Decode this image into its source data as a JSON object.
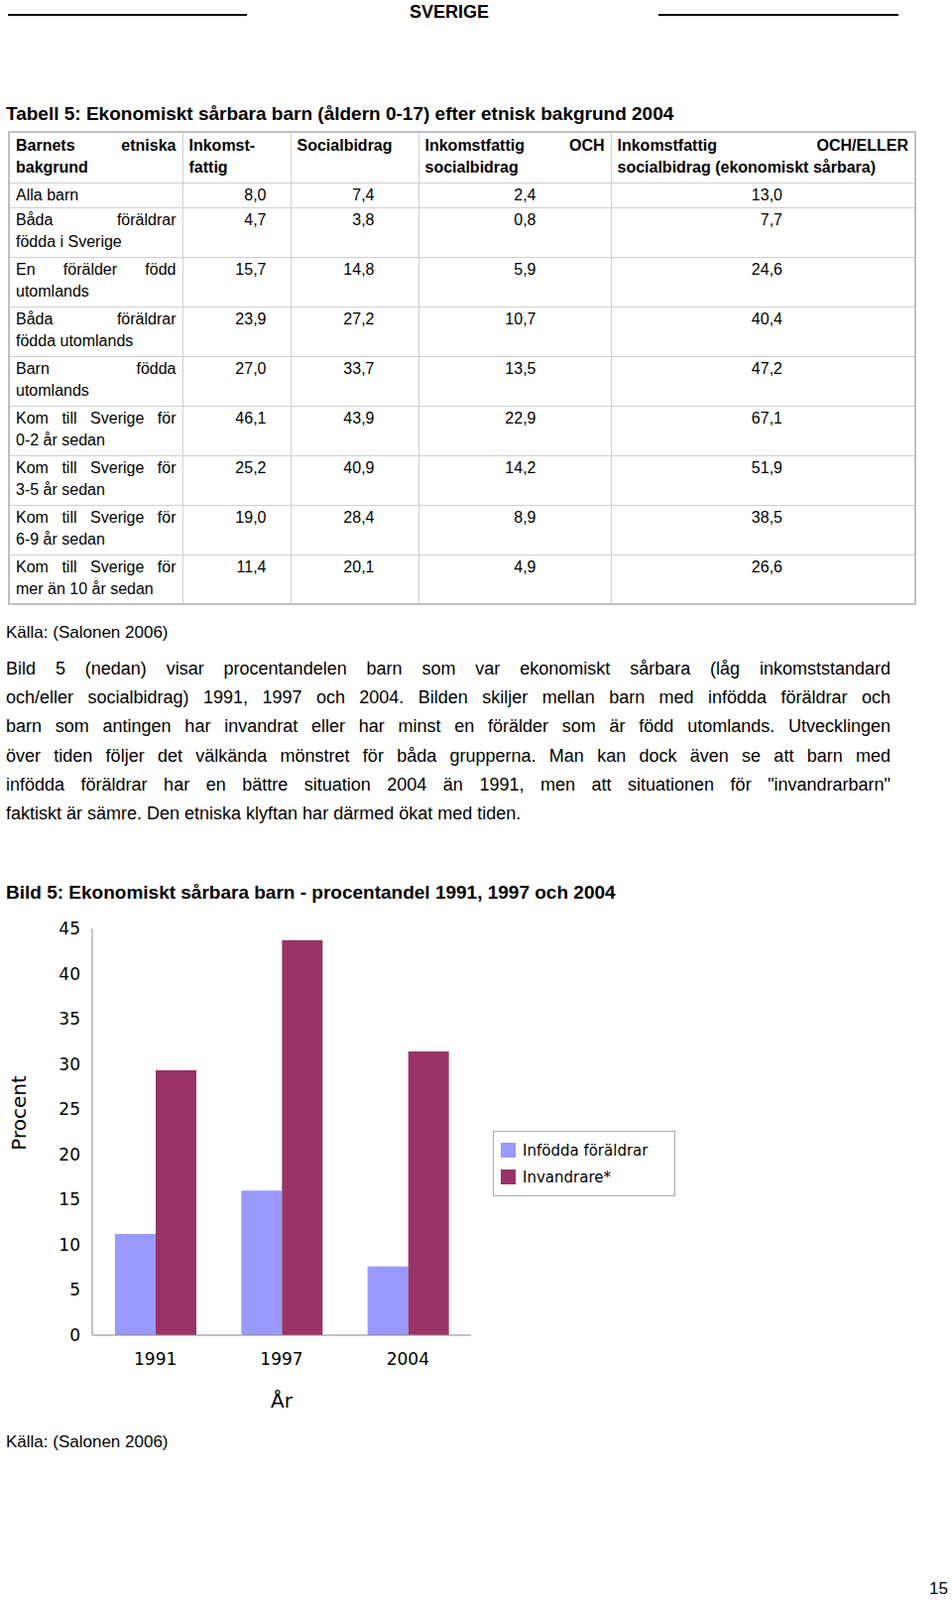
{
  "header": "SVERIGE",
  "table": {
    "title": "Tabell 5: Ekonomiskt sårbara barn (åldern 0-17) efter etnisk bakgrund 2004",
    "columns": [
      [
        "Barnets etniska",
        "bakgrund"
      ],
      [
        "Inkomst-",
        "fattig"
      ],
      [
        "Socialbidrag"
      ],
      [
        "Inkomstfattig OCH",
        "socialbidrag"
      ],
      [
        "Inkomstfattig OCH/ELLER",
        "socialbidrag (ekonomiskt sårbara)"
      ]
    ],
    "rows": [
      {
        "label": [
          "Alla barn"
        ],
        "values": [
          "8,0",
          "7,4",
          "2,4",
          "13,0"
        ]
      },
      {
        "label": [
          "Båda föräldrar",
          "födda i Sverige"
        ],
        "values": [
          "4,7",
          "3,8",
          "0,8",
          "7,7"
        ]
      },
      {
        "label": [
          "En förälder född",
          "utomlands"
        ],
        "values": [
          "15,7",
          "14,8",
          "5,9",
          "24,6"
        ]
      },
      {
        "label": [
          "Båda föräldrar",
          "födda utomlands"
        ],
        "values": [
          "23,9",
          "27,2",
          "10,7",
          "40,4"
        ]
      },
      {
        "label": [
          "Barn födda",
          "utomlands"
        ],
        "values": [
          "27,0",
          "33,7",
          "13,5",
          "47,2"
        ]
      },
      {
        "label": [
          "Kom till Sverige för",
          "0-2 år sedan"
        ],
        "values": [
          "46,1",
          "43,9",
          "22,9",
          "67,1"
        ]
      },
      {
        "label": [
          "Kom till Sverige för",
          "3-5 år sedan"
        ],
        "values": [
          "25,2",
          "40,9",
          "14,2",
          "51,9"
        ]
      },
      {
        "label": [
          "Kom till Sverige för",
          "6-9 år sedan"
        ],
        "values": [
          "19,0",
          "28,4",
          "8,9",
          "38,5"
        ]
      },
      {
        "label": [
          "Kom till Sverige för",
          "mer än 10 år sedan"
        ],
        "values": [
          "11,4",
          "20,1",
          "4,9",
          "26,6"
        ]
      }
    ],
    "source": "Källa: (Salonen 2006)"
  },
  "paragraph": [
    "Bild 5 (nedan) visar procentandelen barn som var ekonomiskt sårbara (låg inkomststandard",
    "och/eller socialbidrag) 1991, 1997 och 2004. Bilden skiljer mellan barn med infödda föräldrar och",
    "barn som antingen har invandrat eller har minst en förälder som är född utomlands. Utvecklingen",
    "över tiden följer det välkända mönstret för båda grupperna. Man kan dock även se att barn med",
    "infödda föräldrar har en bättre situation 2004 än 1991, men att situationen för \"invandrarbarn\"",
    "faktiskt är sämre. Den etniska klyftan har därmed ökat med tiden."
  ],
  "chart_data": {
    "type": "bar",
    "title": "Bild 5: Ekonomiskt sårbara barn - procentandel 1991, 1997 och 2004",
    "x_label": "År",
    "y_label": "Procent",
    "categories": [
      "1991",
      "1997",
      "2004"
    ],
    "series": [
      {
        "name": "Infödda föräldrar",
        "color": "#9999ff",
        "values": [
          11.2,
          16.0,
          7.6
        ]
      },
      {
        "name": "Invandrare*",
        "color": "#993366",
        "values": [
          29.3,
          43.7,
          31.4
        ]
      }
    ],
    "ylim": [
      0,
      45
    ],
    "yticks": [
      0,
      5,
      10,
      15,
      20,
      25,
      30,
      35,
      40,
      45
    ],
    "grid": false,
    "legend": "right",
    "source": "Källa: (Salonen 2006)"
  },
  "page_number": "15"
}
